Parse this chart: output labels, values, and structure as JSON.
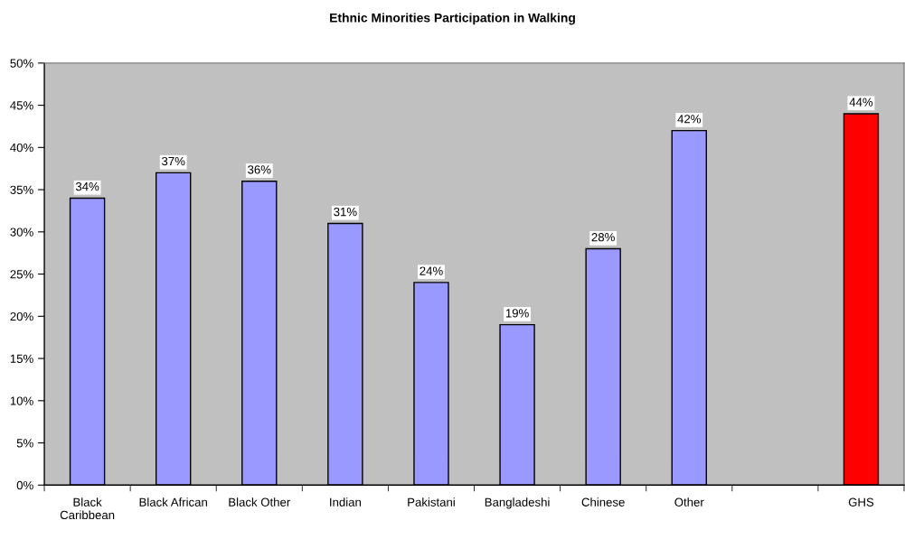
{
  "chart_data": {
    "type": "bar",
    "title": "Ethnic Minorities Participation in Walking",
    "categories": [
      "Black\nCaribbean",
      "Black African",
      "Black Other",
      "Indian",
      "Pakistani",
      "Bangladeshi",
      "Chinese",
      "Other",
      null,
      "GHS"
    ],
    "values": [
      34,
      37,
      36,
      31,
      24,
      19,
      28,
      42,
      null,
      44
    ],
    "colors": [
      "#9999ff",
      "#9999ff",
      "#9999ff",
      "#9999ff",
      "#9999ff",
      "#9999ff",
      "#9999ff",
      "#9999ff",
      "#9999ff",
      "#ff0000"
    ],
    "value_labels": [
      "34%",
      "37%",
      "36%",
      "31%",
      "24%",
      "19%",
      "28%",
      "42%",
      null,
      "44%"
    ],
    "ylim": [
      0,
      50
    ],
    "yticks": [
      {
        "value": 0,
        "label": "0%"
      },
      {
        "value": 5,
        "label": "5%"
      },
      {
        "value": 10,
        "label": "10%"
      },
      {
        "value": 15,
        "label": "15%"
      },
      {
        "value": 20,
        "label": "20%"
      },
      {
        "value": 25,
        "label": "25%"
      },
      {
        "value": 30,
        "label": "30%"
      },
      {
        "value": 35,
        "label": "35%"
      },
      {
        "value": 40,
        "label": "40%"
      },
      {
        "value": 45,
        "label": "45%"
      },
      {
        "value": 50,
        "label": "50%"
      }
    ],
    "grid": false,
    "legend": false
  }
}
